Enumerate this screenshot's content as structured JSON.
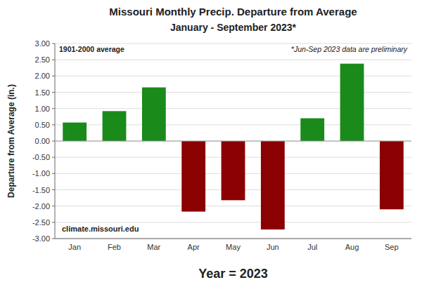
{
  "chart_data": {
    "type": "bar",
    "title": "Missouri Monthly Precip. Departure from Average",
    "subtitle": "January - September 2023*",
    "categories": [
      "Jan",
      "Feb",
      "Mar",
      "Apr",
      "May",
      "Jun",
      "Jul",
      "Aug",
      "Sep"
    ],
    "values": [
      0.57,
      0.92,
      1.65,
      -2.17,
      -1.82,
      -2.72,
      0.7,
      2.38,
      -2.1
    ],
    "colors": [
      "#1a8a1a",
      "#1a8a1a",
      "#1a8a1a",
      "#8b0000",
      "#8b0000",
      "#8b0000",
      "#1a8a1a",
      "#1a8a1a",
      "#8b0000"
    ],
    "y_label": "Departure from Average (in.)",
    "x_label": "Year = 2023",
    "annotations": [
      "1901-2000 average",
      "*Jun-Sep 2023 data are preliminary",
      "climate.missouri.edu"
    ],
    "ylim": [
      -3.0,
      3.0
    ],
    "yticks": [
      {
        "value": -3.0,
        "label": "-3.00"
      },
      {
        "value": -2.5,
        "label": "-2.50"
      },
      {
        "value": -2.0,
        "label": "-2.00"
      },
      {
        "value": -1.5,
        "label": "-1.50"
      },
      {
        "value": -1.0,
        "label": "-1.00"
      },
      {
        "value": -0.5,
        "label": "-0.50"
      },
      {
        "value": 0.0,
        "label": "0.00"
      },
      {
        "value": 0.5,
        "label": "0.50"
      },
      {
        "value": 1.0,
        "label": "1.00"
      },
      {
        "value": 1.5,
        "label": "1.50"
      },
      {
        "value": 2.0,
        "label": "2.00"
      },
      {
        "value": 2.5,
        "label": "2.50"
      },
      {
        "value": 3.0,
        "label": "3.00"
      }
    ],
    "grid": true
  }
}
